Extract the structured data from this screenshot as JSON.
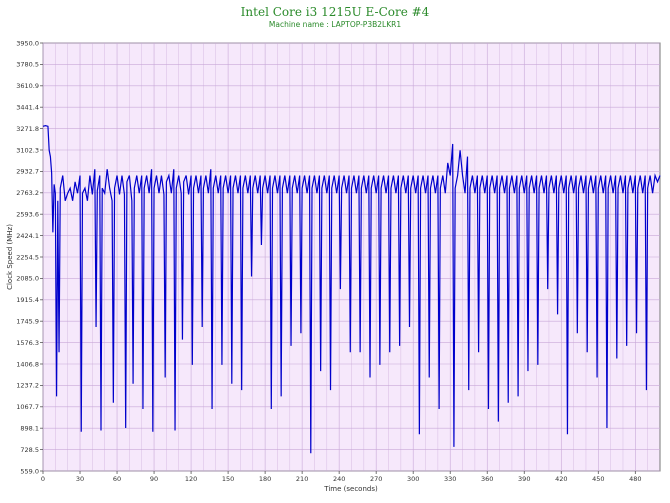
{
  "chart_data": {
    "type": "line",
    "title": "Intel Core i3 1215U E-Core #4",
    "subtitle": "Machine name : LAPTOP-P3B2LKR1",
    "xlabel": "Time (seconds)",
    "ylabel": "Clock Speed (MHz)",
    "xlim": [
      0,
      500
    ],
    "ylim": [
      559.0,
      3950.0
    ],
    "x_ticks": [
      "0",
      "30",
      "60",
      "90",
      "120",
      "150",
      "180",
      "210",
      "240",
      "270",
      "300",
      "330",
      "360",
      "390",
      "420",
      "450",
      "480"
    ],
    "y_ticks": [
      "559.0",
      "728.5",
      "898.1",
      "1067.7",
      "1237.2",
      "1406.8",
      "1576.3",
      "1745.9",
      "1915.4",
      "2085.0",
      "2254.5",
      "2424.1",
      "2593.6",
      "2763.2",
      "2932.7",
      "3102.3",
      "3271.8",
      "3441.4",
      "3610.9",
      "3780.5",
      "3950.0"
    ],
    "grid": true,
    "colors": {
      "line": "#0000cc",
      "plot_bg": "#f6e8fb",
      "grid": "#c8a8d8",
      "title": "#2a8a2a"
    },
    "series": [
      {
        "values": [
          [
            0,
            3290
          ],
          [
            2,
            3295
          ],
          [
            4,
            3290
          ],
          [
            5,
            3100
          ],
          [
            6,
            3050
          ],
          [
            7,
            2920
          ],
          [
            8,
            2450
          ],
          [
            9,
            2830
          ],
          [
            10,
            2760
          ],
          [
            11,
            1150
          ],
          [
            12,
            2700
          ],
          [
            13,
            1500
          ],
          [
            14,
            2800
          ],
          [
            16,
            2900
          ],
          [
            18,
            2700
          ],
          [
            20,
            2760
          ],
          [
            22,
            2800
          ],
          [
            24,
            2700
          ],
          [
            26,
            2850
          ],
          [
            28,
            2760
          ],
          [
            30,
            2900
          ],
          [
            31,
            870
          ],
          [
            32,
            2760
          ],
          [
            34,
            2800
          ],
          [
            36,
            2700
          ],
          [
            38,
            2900
          ],
          [
            40,
            2750
          ],
          [
            42,
            2950
          ],
          [
            43,
            1700
          ],
          [
            44,
            2780
          ],
          [
            46,
            2900
          ],
          [
            47,
            880
          ],
          [
            48,
            2800
          ],
          [
            50,
            2760
          ],
          [
            52,
            2950
          ],
          [
            54,
            2800
          ],
          [
            56,
            2700
          ],
          [
            57,
            1100
          ],
          [
            58,
            2800
          ],
          [
            60,
            2900
          ],
          [
            62,
            2750
          ],
          [
            64,
            2900
          ],
          [
            66,
            2750
          ],
          [
            67,
            900
          ],
          [
            68,
            2850
          ],
          [
            70,
            2900
          ],
          [
            72,
            2700
          ],
          [
            73,
            1250
          ],
          [
            74,
            2800
          ],
          [
            76,
            2900
          ],
          [
            78,
            2760
          ],
          [
            80,
            2900
          ],
          [
            81,
            1050
          ],
          [
            82,
            2800
          ],
          [
            84,
            2900
          ],
          [
            86,
            2760
          ],
          [
            88,
            2950
          ],
          [
            89,
            870
          ],
          [
            90,
            2800
          ],
          [
            92,
            2900
          ],
          [
            94,
            2760
          ],
          [
            96,
            2900
          ],
          [
            98,
            2750
          ],
          [
            99,
            1300
          ],
          [
            100,
            2850
          ],
          [
            102,
            2900
          ],
          [
            104,
            2760
          ],
          [
            106,
            2950
          ],
          [
            107,
            880
          ],
          [
            108,
            2800
          ],
          [
            110,
            2900
          ],
          [
            112,
            2760
          ],
          [
            113,
            1600
          ],
          [
            114,
            2850
          ],
          [
            116,
            2900
          ],
          [
            118,
            2750
          ],
          [
            120,
            2900
          ],
          [
            121,
            1400
          ],
          [
            122,
            2800
          ],
          [
            124,
            2900
          ],
          [
            126,
            2760
          ],
          [
            128,
            2900
          ],
          [
            129,
            1700
          ],
          [
            130,
            2800
          ],
          [
            132,
            2900
          ],
          [
            134,
            2760
          ],
          [
            136,
            2950
          ],
          [
            137,
            1050
          ],
          [
            138,
            2800
          ],
          [
            140,
            2900
          ],
          [
            142,
            2760
          ],
          [
            144,
            2900
          ],
          [
            145,
            1400
          ],
          [
            146,
            2800
          ],
          [
            148,
            2900
          ],
          [
            150,
            2760
          ],
          [
            152,
            2900
          ],
          [
            153,
            1250
          ],
          [
            154,
            2800
          ],
          [
            156,
            2900
          ],
          [
            158,
            2760
          ],
          [
            160,
            2900
          ],
          [
            161,
            1200
          ],
          [
            162,
            2800
          ],
          [
            164,
            2900
          ],
          [
            166,
            2760
          ],
          [
            168,
            2900
          ],
          [
            169,
            2100
          ],
          [
            170,
            2800
          ],
          [
            172,
            2900
          ],
          [
            174,
            2760
          ],
          [
            176,
            2900
          ],
          [
            177,
            2350
          ],
          [
            178,
            2800
          ],
          [
            180,
            2900
          ],
          [
            182,
            2760
          ],
          [
            184,
            2900
          ],
          [
            185,
            1050
          ],
          [
            186,
            2800
          ],
          [
            188,
            2900
          ],
          [
            190,
            2760
          ],
          [
            192,
            2900
          ],
          [
            193,
            1150
          ],
          [
            194,
            2800
          ],
          [
            196,
            2900
          ],
          [
            198,
            2760
          ],
          [
            200,
            2900
          ],
          [
            201,
            1550
          ],
          [
            202,
            2800
          ],
          [
            204,
            2900
          ],
          [
            206,
            2760
          ],
          [
            208,
            2900
          ],
          [
            209,
            1650
          ],
          [
            210,
            2800
          ],
          [
            212,
            2900
          ],
          [
            214,
            2760
          ],
          [
            216,
            2900
          ],
          [
            217,
            700
          ],
          [
            218,
            2800
          ],
          [
            220,
            2900
          ],
          [
            222,
            2760
          ],
          [
            224,
            2900
          ],
          [
            225,
            1350
          ],
          [
            226,
            2800
          ],
          [
            228,
            2900
          ],
          [
            230,
            2760
          ],
          [
            232,
            2900
          ],
          [
            233,
            1200
          ],
          [
            234,
            2800
          ],
          [
            236,
            2900
          ],
          [
            238,
            2760
          ],
          [
            240,
            2900
          ],
          [
            241,
            2000
          ],
          [
            242,
            2800
          ],
          [
            244,
            2900
          ],
          [
            246,
            2760
          ],
          [
            248,
            2900
          ],
          [
            249,
            1500
          ],
          [
            250,
            2800
          ],
          [
            252,
            2900
          ],
          [
            254,
            2760
          ],
          [
            256,
            2900
          ],
          [
            257,
            1500
          ],
          [
            258,
            2800
          ],
          [
            260,
            2900
          ],
          [
            262,
            2760
          ],
          [
            264,
            2900
          ],
          [
            265,
            1300
          ],
          [
            266,
            2800
          ],
          [
            268,
            2900
          ],
          [
            270,
            2760
          ],
          [
            272,
            2900
          ],
          [
            273,
            1400
          ],
          [
            274,
            2800
          ],
          [
            276,
            2900
          ],
          [
            278,
            2760
          ],
          [
            280,
            2900
          ],
          [
            281,
            1500
          ],
          [
            282,
            2800
          ],
          [
            284,
            2900
          ],
          [
            286,
            2760
          ],
          [
            288,
            2900
          ],
          [
            289,
            1550
          ],
          [
            290,
            2800
          ],
          [
            292,
            2900
          ],
          [
            294,
            2760
          ],
          [
            296,
            2900
          ],
          [
            297,
            1700
          ],
          [
            298,
            2800
          ],
          [
            300,
            2900
          ],
          [
            302,
            2760
          ],
          [
            304,
            2900
          ],
          [
            305,
            850
          ],
          [
            306,
            2800
          ],
          [
            308,
            2900
          ],
          [
            310,
            2760
          ],
          [
            312,
            2900
          ],
          [
            313,
            1300
          ],
          [
            314,
            2800
          ],
          [
            316,
            2900
          ],
          [
            318,
            2760
          ],
          [
            320,
            2900
          ],
          [
            321,
            1050
          ],
          [
            322,
            2800
          ],
          [
            324,
            2900
          ],
          [
            326,
            2760
          ],
          [
            328,
            3000
          ],
          [
            330,
            2900
          ],
          [
            332,
            3150
          ],
          [
            333,
            750
          ],
          [
            334,
            2800
          ],
          [
            336,
            2900
          ],
          [
            338,
            3100
          ],
          [
            340,
            2900
          ],
          [
            342,
            2760
          ],
          [
            344,
            3050
          ],
          [
            345,
            1200
          ],
          [
            346,
            2800
          ],
          [
            348,
            2900
          ],
          [
            350,
            2760
          ],
          [
            352,
            2900
          ],
          [
            353,
            1500
          ],
          [
            354,
            2800
          ],
          [
            356,
            2900
          ],
          [
            358,
            2760
          ],
          [
            360,
            2900
          ],
          [
            361,
            1050
          ],
          [
            362,
            2800
          ],
          [
            364,
            2900
          ],
          [
            366,
            2760
          ],
          [
            368,
            2900
          ],
          [
            369,
            950
          ],
          [
            370,
            2800
          ],
          [
            372,
            2900
          ],
          [
            374,
            2760
          ],
          [
            376,
            2900
          ],
          [
            377,
            1100
          ],
          [
            378,
            2800
          ],
          [
            380,
            2900
          ],
          [
            382,
            2760
          ],
          [
            384,
            2900
          ],
          [
            385,
            1150
          ],
          [
            386,
            2800
          ],
          [
            388,
            2900
          ],
          [
            390,
            2760
          ],
          [
            392,
            2900
          ],
          [
            393,
            1350
          ],
          [
            394,
            2800
          ],
          [
            396,
            2900
          ],
          [
            398,
            2760
          ],
          [
            400,
            2900
          ],
          [
            401,
            1400
          ],
          [
            402,
            2800
          ],
          [
            404,
            2900
          ],
          [
            406,
            2760
          ],
          [
            408,
            2900
          ],
          [
            409,
            2000
          ],
          [
            410,
            2800
          ],
          [
            412,
            2900
          ],
          [
            414,
            2760
          ],
          [
            416,
            2900
          ],
          [
            417,
            1800
          ],
          [
            418,
            2800
          ],
          [
            420,
            2900
          ],
          [
            422,
            2760
          ],
          [
            424,
            2900
          ],
          [
            425,
            850
          ],
          [
            426,
            2800
          ],
          [
            428,
            2900
          ],
          [
            430,
            2760
          ],
          [
            432,
            2900
          ],
          [
            433,
            1650
          ],
          [
            434,
            2800
          ],
          [
            436,
            2900
          ],
          [
            438,
            2760
          ],
          [
            440,
            2900
          ],
          [
            441,
            1500
          ],
          [
            442,
            2800
          ],
          [
            444,
            2900
          ],
          [
            446,
            2760
          ],
          [
            448,
            2900
          ],
          [
            449,
            1300
          ],
          [
            450,
            2800
          ],
          [
            452,
            2900
          ],
          [
            454,
            2760
          ],
          [
            456,
            2900
          ],
          [
            457,
            900
          ],
          [
            458,
            2800
          ],
          [
            460,
            2900
          ],
          [
            462,
            2760
          ],
          [
            464,
            2900
          ],
          [
            465,
            1450
          ],
          [
            466,
            2800
          ],
          [
            468,
            2900
          ],
          [
            470,
            2760
          ],
          [
            472,
            2900
          ],
          [
            473,
            1550
          ],
          [
            474,
            2800
          ],
          [
            476,
            2900
          ],
          [
            478,
            2760
          ],
          [
            480,
            2900
          ],
          [
            481,
            1650
          ],
          [
            482,
            2800
          ],
          [
            484,
            2900
          ],
          [
            486,
            2760
          ],
          [
            488,
            2900
          ],
          [
            489,
            1200
          ],
          [
            490,
            2800
          ],
          [
            492,
            2900
          ],
          [
            494,
            2760
          ],
          [
            496,
            2900
          ],
          [
            498,
            2850
          ],
          [
            500,
            2900
          ]
        ]
      }
    ]
  }
}
